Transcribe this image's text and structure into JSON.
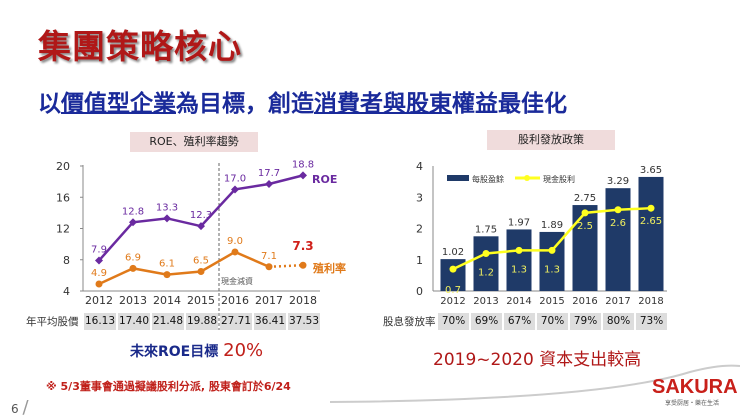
{
  "title": "集團策略核心",
  "subtitle": {
    "p1": "以",
    "u1": "價值型企業",
    "p2": "為目標，創造",
    "u2": "消費者與股東",
    "p3": "權益最佳化"
  },
  "left_table_label": "年平均股價",
  "right_table_label": "股息發放率",
  "footer": {
    "goal_label": "未來ROE目標",
    "goal_value": "20%",
    "capex": "2019~2020 資本支出較高",
    "note": "※ 5/3董事會通過擬議股利分派, 股東會訂於6/24",
    "page": "6",
    "logo": "SAKURA",
    "tagline": "享受厨居・樂在生活"
  },
  "colors": {
    "roe": "#6a2aa0",
    "yield": "#e07a1a",
    "eps": "#1f3a68",
    "dividend": "#ffff20",
    "title": "#b01818",
    "subtitle": "#1a2a9a"
  },
  "chart_data": [
    {
      "type": "line",
      "title": "ROE、殖利率趨勢",
      "categories": [
        "2012",
        "2013",
        "2014",
        "2015",
        "2016",
        "2017",
        "2018"
      ],
      "ylim": [
        4,
        20
      ],
      "yticks": [
        4,
        8,
        12,
        16,
        20
      ],
      "series": [
        {
          "name": "ROE",
          "values": [
            7.9,
            12.8,
            13.3,
            12.3,
            17.0,
            17.7,
            18.8
          ],
          "labels": [
            "7.9",
            "12.8",
            "13.3",
            "12.3",
            "17.0",
            "17.7",
            "18.8"
          ]
        },
        {
          "name": "殖利率",
          "values": [
            4.9,
            6.9,
            6.1,
            6.5,
            9.0,
            7.1,
            7.3
          ],
          "labels": [
            "4.9",
            "6.9",
            "6.1",
            "6.5",
            "9.0",
            "7.1",
            "7.3"
          ],
          "last_dotted": true
        }
      ],
      "annotation": "現金減資",
      "table": [
        "16.13",
        "17.40",
        "21.48",
        "19.88",
        "27.71",
        "36.41",
        "37.53"
      ]
    },
    {
      "type": "bar",
      "title": "股利發放政策",
      "categories": [
        "2012",
        "2013",
        "2014",
        "2015",
        "2016",
        "2017",
        "2018"
      ],
      "ylim": [
        0,
        4
      ],
      "yticks": [
        0,
        1,
        2,
        3,
        4
      ],
      "legend": "top-left",
      "series": [
        {
          "name": "每股盈餘",
          "type": "bar",
          "values": [
            1.02,
            1.75,
            1.97,
            1.89,
            2.75,
            3.29,
            3.65
          ],
          "labels": [
            "1.02",
            "1.75",
            "1.97",
            "1.89",
            "2.75",
            "3.29",
            "3.65"
          ]
        },
        {
          "name": "現金股利",
          "type": "line",
          "values": [
            0.7,
            1.2,
            1.3,
            1.3,
            2.5,
            2.6,
            2.65
          ],
          "labels": [
            "0.7",
            "1.2",
            "1.3",
            "1.3",
            "2.5",
            "2.6",
            "2.65"
          ]
        }
      ],
      "table": [
        "70%",
        "69%",
        "67%",
        "70%",
        "79%",
        "80%",
        "73%"
      ]
    }
  ]
}
